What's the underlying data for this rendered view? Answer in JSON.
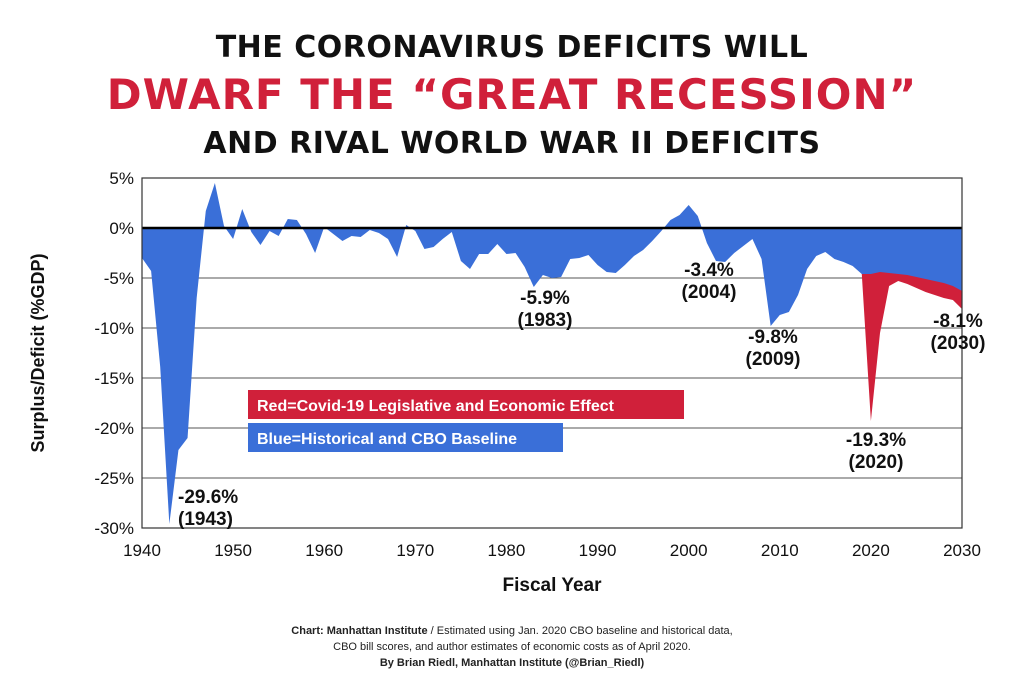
{
  "header": {
    "line1": "THE CORONAVIRUS DEFICITS WILL",
    "line2": "DWARF THE “GREAT RECESSION”",
    "line3": "AND RIVAL WORLD WAR II DEFICITS"
  },
  "footer": {
    "source_label": "Chart: Manhattan Institute",
    "source_sep": "/",
    "note_part1": "Estimated using Jan. 2020 CBO baseline and historical data,",
    "note_part2": "CBO bill scores, and author estimates of economic costs as of April 2020.",
    "byline": "By Brian Riedl, Manhattan Institute (@Brian_Riedl)"
  },
  "colors": {
    "blue": "#3a6fd8",
    "red": "#d0203a",
    "grid": "#555555"
  },
  "chart_data": {
    "type": "area",
    "xlabel": "Fiscal Year",
    "ylabel": "Surplus/Deficit (%GDP)",
    "xlim": [
      1940,
      2030
    ],
    "ylim": [
      -30,
      5
    ],
    "x_ticks": [
      "1940",
      "1950",
      "1960",
      "1970",
      "1980",
      "1990",
      "2000",
      "2010",
      "2020",
      "2030"
    ],
    "y_ticks": [
      "5%",
      "0%",
      "-5%",
      "-10%",
      "-15%",
      "-20%",
      "-25%",
      "-30%"
    ],
    "grid": "horizontal",
    "legend": [
      {
        "label": "Red=Covid-19 Legislative and Economic Effect",
        "color": "#d0203a"
      },
      {
        "label": "Blue=Historical and CBO Baseline",
        "color": "#3a6fd8"
      }
    ],
    "series": [
      {
        "name": "Blue=Historical and CBO Baseline",
        "color": "#3a6fd8",
        "x": [
          1940,
          1941,
          1942,
          1943,
          1944,
          1945,
          1946,
          1947,
          1948,
          1949,
          1950,
          1951,
          1952,
          1953,
          1954,
          1955,
          1956,
          1957,
          1958,
          1959,
          1960,
          1961,
          1962,
          1963,
          1964,
          1965,
          1966,
          1967,
          1968,
          1969,
          1970,
          1971,
          1972,
          1973,
          1974,
          1975,
          1976,
          1977,
          1978,
          1979,
          1980,
          1981,
          1982,
          1983,
          1984,
          1985,
          1986,
          1987,
          1988,
          1989,
          1990,
          1991,
          1992,
          1993,
          1994,
          1995,
          1996,
          1997,
          1998,
          1999,
          2000,
          2001,
          2002,
          2003,
          2004,
          2005,
          2006,
          2007,
          2008,
          2009,
          2010,
          2011,
          2012,
          2013,
          2014,
          2015,
          2016,
          2017,
          2018,
          2019,
          2020,
          2021,
          2022,
          2023,
          2024,
          2025,
          2026,
          2027,
          2028,
          2029,
          2030
        ],
        "y": [
          -3.0,
          -4.3,
          -13.9,
          -29.6,
          -22.2,
          -21.0,
          -7.0,
          1.7,
          4.5,
          0.2,
          -1.1,
          1.9,
          -0.4,
          -1.7,
          -0.3,
          -0.8,
          0.9,
          0.8,
          -0.6,
          -2.5,
          0.1,
          -0.6,
          -1.3,
          -0.8,
          -0.9,
          -0.2,
          -0.5,
          -1.1,
          -2.9,
          0.3,
          -0.3,
          -2.1,
          -1.9,
          -1.1,
          -0.4,
          -3.3,
          -4.1,
          -2.6,
          -2.6,
          -1.6,
          -2.6,
          -2.5,
          -3.9,
          -5.9,
          -4.7,
          -5.0,
          -4.9,
          -3.1,
          -3.0,
          -2.7,
          -3.7,
          -4.4,
          -4.5,
          -3.7,
          -2.8,
          -2.2,
          -1.3,
          -0.3,
          0.8,
          1.3,
          2.3,
          1.2,
          -1.5,
          -3.3,
          -3.4,
          -2.5,
          -1.8,
          -1.1,
          -3.1,
          -9.8,
          -8.7,
          -8.4,
          -6.7,
          -4.1,
          -2.8,
          -2.4,
          -3.1,
          -3.4,
          -3.8,
          -4.6,
          -4.6,
          -4.4,
          -4.5,
          -4.6,
          -4.7,
          -4.9,
          -5.1,
          -5.3,
          -5.5,
          -5.8,
          -6.3
        ]
      },
      {
        "name": "Red=Covid-19 Legislative and Economic Effect",
        "color": "#d0203a",
        "x": [
          2019,
          2020,
          2021,
          2022,
          2023,
          2024,
          2025,
          2026,
          2027,
          2028,
          2029,
          2030
        ],
        "y": [
          -4.6,
          -19.3,
          -10.5,
          -5.8,
          -5.3,
          -5.6,
          -6.0,
          -6.4,
          -6.7,
          -7.0,
          -7.2,
          -8.1
        ]
      }
    ],
    "annotations": [
      {
        "x": 1943,
        "y": -29.6,
        "line1": "-29.6%",
        "line2": "(1943)"
      },
      {
        "x": 1983,
        "y": -5.9,
        "line1": "-5.9%",
        "line2": "(1983)"
      },
      {
        "x": 2004,
        "y": -3.4,
        "line1": "-3.4%",
        "line2": "(2004)"
      },
      {
        "x": 2009,
        "y": -9.8,
        "line1": "-9.8%",
        "line2": "(2009)"
      },
      {
        "x": 2020,
        "y": -19.3,
        "line1": "-19.3%",
        "line2": "(2020)"
      },
      {
        "x": 2030,
        "y": -8.1,
        "line1": "-8.1%",
        "line2": "(2030)"
      }
    ]
  }
}
